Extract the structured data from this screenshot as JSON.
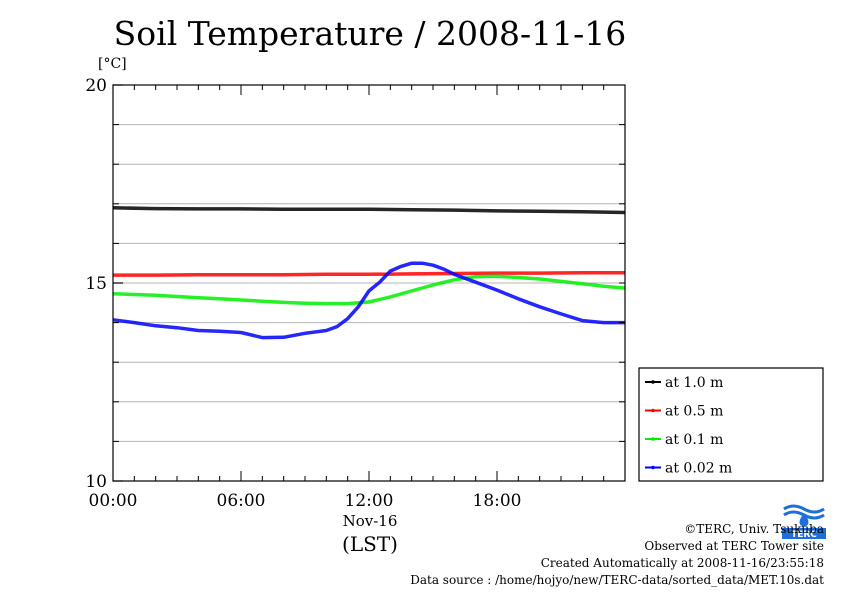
{
  "chart_data": {
    "type": "line",
    "title": "Soil Temperature / 2008-11-16",
    "unit_label": "[°C]",
    "ylim": [
      10,
      20
    ],
    "y_ticks": [
      {
        "value": 10,
        "label": "10"
      },
      {
        "value": 15,
        "label": "15"
      },
      {
        "value": 20,
        "label": "20"
      }
    ],
    "y_gridlines": [
      11,
      12,
      13,
      14,
      15,
      16,
      17,
      18,
      19
    ],
    "xlim": [
      0,
      24
    ],
    "x_ticks": [
      {
        "value": 0,
        "label": "00:00"
      },
      {
        "value": 6,
        "label": "06:00"
      },
      {
        "value": 12,
        "label": "12:00"
      },
      {
        "value": 18,
        "label": "18:00"
      }
    ],
    "x_date_label": "Nov-16",
    "x_timezone_label": "(LST)",
    "grid": true,
    "legend_position": "right",
    "series": [
      {
        "name": "at 1.0 m",
        "color": "#000000",
        "x": [
          0,
          2,
          4,
          6,
          8,
          10,
          12,
          14,
          16,
          18,
          20,
          22,
          24
        ],
        "y": [
          16.9,
          16.88,
          16.87,
          16.87,
          16.86,
          16.86,
          16.86,
          16.85,
          16.84,
          16.82,
          16.81,
          16.8,
          16.78
        ]
      },
      {
        "name": "at 0.5 m",
        "color": "#ff0000",
        "x": [
          0,
          2,
          4,
          6,
          8,
          10,
          12,
          14,
          16,
          18,
          20,
          22,
          24
        ],
        "y": [
          15.2,
          15.2,
          15.21,
          15.21,
          15.21,
          15.22,
          15.22,
          15.23,
          15.24,
          15.25,
          15.25,
          15.26,
          15.26
        ]
      },
      {
        "name": "at 0.1 m",
        "color": "#00ee00",
        "x": [
          0,
          1,
          2,
          3,
          4,
          5,
          6,
          7,
          8,
          9,
          10,
          11,
          12,
          13,
          14,
          15,
          16,
          17,
          18,
          19,
          20,
          21,
          22,
          23,
          24
        ],
        "y": [
          14.73,
          14.71,
          14.69,
          14.66,
          14.63,
          14.6,
          14.57,
          14.54,
          14.51,
          14.49,
          14.48,
          14.48,
          14.52,
          14.65,
          14.8,
          14.95,
          15.08,
          15.16,
          15.17,
          15.14,
          15.1,
          15.04,
          14.98,
          14.92,
          14.87
        ]
      },
      {
        "name": "at 0.02 m",
        "color": "#0000ff",
        "x": [
          0,
          1,
          2,
          3,
          4,
          5,
          6,
          7,
          8,
          9,
          10,
          10.5,
          11,
          11.5,
          12,
          12.5,
          13,
          13.5,
          14,
          14.5,
          15,
          15.5,
          16,
          17,
          18,
          19,
          20,
          21,
          22,
          23,
          24
        ],
        "y": [
          14.07,
          14.0,
          13.92,
          13.87,
          13.8,
          13.78,
          13.75,
          13.62,
          13.63,
          13.73,
          13.8,
          13.9,
          14.1,
          14.4,
          14.8,
          15.02,
          15.3,
          15.42,
          15.5,
          15.5,
          15.45,
          15.35,
          15.22,
          15.02,
          14.82,
          14.6,
          14.4,
          14.22,
          14.05,
          14.0,
          14.0
        ]
      }
    ]
  },
  "credits": {
    "copyright": "©TERC, Univ. Tsukuba",
    "observed": "Observed at TERC Tower site",
    "created": "Created Automatically at 2008-11-16/23:55:18",
    "source": "Data source : /home/hojyo/new/TERC-data/sorted_data/MET.10s.dat"
  },
  "logo": {
    "text": "TERC",
    "color": "#1e6fd9"
  }
}
